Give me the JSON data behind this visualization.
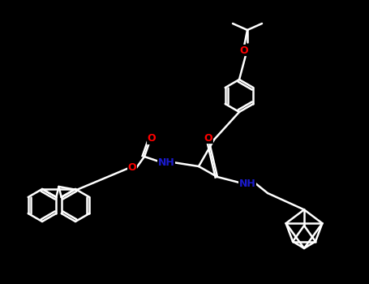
{
  "bg_color": "#000000",
  "bond_color": "#ffffff",
  "O_color": "#ff0000",
  "N_color": "#1a1acd",
  "C_color": "#808080",
  "bond_width": 1.8,
  "label_fontsize": 9,
  "figsize": [
    4.55,
    3.5
  ],
  "dpi": 100,
  "xlim": [
    0,
    455
  ],
  "ylim": [
    0,
    350
  ]
}
